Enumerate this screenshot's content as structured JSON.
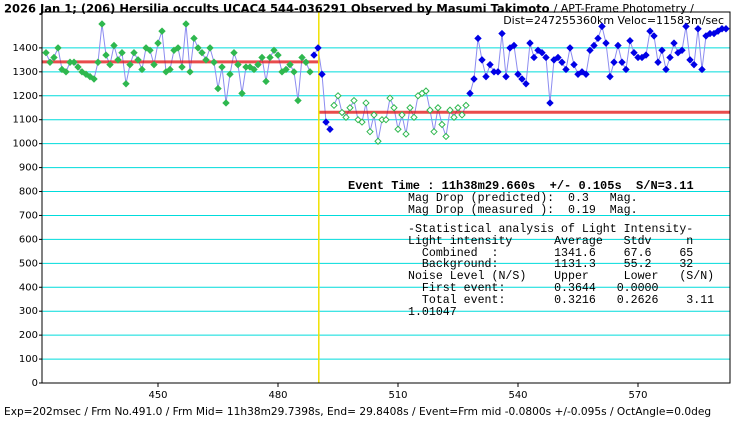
{
  "chart_data": {
    "type": "lightcurve",
    "title": "2026 Jan 1; (206) Hersilia occults UCAC4 544-036291 Observed by Masumi Takimoto",
    "title_suffix": "/ APT-Frame Photometry /",
    "subtitle": "Dist=247255360km Veloc=11583m/sec",
    "xlim": [
      421,
      593
    ],
    "xticks": [
      450,
      480,
      510,
      540,
      570
    ],
    "ylim": [
      0,
      1550
    ],
    "yticks": [
      0,
      100,
      200,
      300,
      400,
      500,
      600,
      700,
      800,
      900,
      1000,
      1100,
      1200,
      1300,
      1400
    ],
    "grid": true,
    "grid_color": "#00dcdc",
    "line_color": "#8c8cf0",
    "series": [
      {
        "color": "#2fb84f",
        "filled": true,
        "x": [
          422,
          423,
          424,
          425,
          426,
          427,
          428,
          429,
          430,
          431,
          432,
          433,
          434,
          435,
          436,
          437,
          438,
          439,
          440,
          441,
          442,
          443,
          444,
          445,
          446,
          447,
          448,
          449,
          450,
          451,
          452,
          453,
          454,
          455,
          456,
          457,
          458,
          459,
          460,
          461,
          462,
          463,
          464,
          465,
          466,
          467,
          468,
          469,
          470,
          471,
          472,
          473,
          474,
          475,
          476,
          477,
          478,
          479,
          480,
          481,
          482,
          483,
          484,
          485,
          486,
          487,
          488
        ],
        "values": [
          1380,
          1340,
          1360,
          1400,
          1310,
          1300,
          1340,
          1340,
          1320,
          1300,
          1290,
          1280,
          1270,
          1340,
          1500,
          1370,
          1330,
          1410,
          1350,
          1380,
          1250,
          1330,
          1380,
          1350,
          1310,
          1400,
          1390,
          1330,
          1420,
          1470,
          1300,
          1310,
          1390,
          1400,
          1320,
          1500,
          1300,
          1440,
          1400,
          1380,
          1350,
          1400,
          1340,
          1230,
          1320,
          1170,
          1290,
          1380,
          1330,
          1210,
          1320,
          1320,
          1310,
          1330,
          1360,
          1260,
          1360,
          1390,
          1370,
          1300,
          1310,
          1330,
          1300,
          1180,
          1360,
          1340,
          1300
        ]
      },
      {
        "color": "#0000e6",
        "filled": true,
        "x": [
          489,
          490,
          491,
          492,
          493
        ],
        "values": [
          1370,
          1400,
          1290,
          1090,
          1060
        ]
      },
      {
        "color": "#2fb84f",
        "filled": false,
        "x": [
          494,
          495,
          496,
          497,
          498,
          499,
          500,
          501,
          502,
          503,
          504,
          505,
          506,
          507,
          508,
          509,
          510,
          511,
          512,
          513,
          514,
          515,
          516,
          517,
          518,
          519,
          520,
          521,
          522,
          523,
          524,
          525,
          526,
          527
        ],
        "values": [
          1160,
          1200,
          1130,
          1110,
          1150,
          1180,
          1100,
          1090,
          1170,
          1050,
          1120,
          1010,
          1100,
          1100,
          1190,
          1150,
          1060,
          1120,
          1040,
          1150,
          1110,
          1200,
          1210,
          1220,
          1140,
          1050,
          1150,
          1080,
          1030,
          1140,
          1110,
          1150,
          1120,
          1160
        ]
      },
      {
        "color": "#0000e6",
        "filled": true,
        "x": [
          528,
          529,
          530,
          531,
          532,
          533,
          534,
          535,
          536,
          537,
          538,
          539,
          540,
          541,
          542,
          543,
          544,
          545,
          546,
          547,
          548,
          549,
          550,
          551,
          552,
          553,
          554,
          555,
          556,
          557,
          558,
          559,
          560,
          561,
          562,
          563,
          564,
          565,
          566,
          567,
          568,
          569,
          570,
          571,
          572,
          573,
          574,
          575,
          576,
          577,
          578,
          579,
          580,
          581,
          582,
          583,
          584,
          585,
          586,
          587,
          588,
          589,
          590,
          591,
          592
        ],
        "values": [
          1210,
          1270,
          1440,
          1350,
          1280,
          1330,
          1300,
          1300,
          1460,
          1280,
          1400,
          1410,
          1290,
          1270,
          1250,
          1420,
          1360,
          1390,
          1380,
          1360,
          1170,
          1350,
          1360,
          1340,
          1310,
          1400,
          1330,
          1290,
          1300,
          1290,
          1390,
          1410,
          1440,
          1490,
          1420,
          1280,
          1340,
          1410,
          1340,
          1310,
          1430,
          1380,
          1360,
          1360,
          1370,
          1470,
          1450,
          1340,
          1390,
          1310,
          1360,
          1420,
          1380,
          1390,
          1490,
          1350,
          1330,
          1480,
          1310,
          1450,
          1460,
          1460,
          1470,
          1480,
          1480
        ]
      }
    ],
    "levels": [
      {
        "value": 1341.6,
        "x": [
          421,
          490.2
        ]
      },
      {
        "value": 1131.3,
        "x": [
          490.2,
          593
        ]
      }
    ],
    "level_color": "#e01010",
    "event_x": 490.2,
    "event_color": "#f0e000",
    "event_text": "Event Time : 11h38m29.660s  +/- 0.105s  S/N=3.11",
    "annotations": [
      "Mag Drop (predicted):  0.3   Mag.",
      "Mag Drop (measured ):  0.19  Mag.",
      "-Statistical analysis of Light Intensity-",
      "Light intensity      Average   Stdv     n",
      "  Combined  :        1341.6    67.6    65",
      "  Background:        1131.3    55.2    32",
      "Noise Level (N/S)    Upper     Lower   (S/N)",
      "  First event:       0.3644   0.0000",
      "  Total event:       0.3216   0.2626    3.11",
      "1.01047"
    ],
    "footer": "Exp=202msec / Frm No.491.0 / Frm Mid= 11h38m29.7398s,  End= 29.8408s / Event=Frm mid -0.0800s +/-0.095s / OctAngle=0.0deg"
  }
}
